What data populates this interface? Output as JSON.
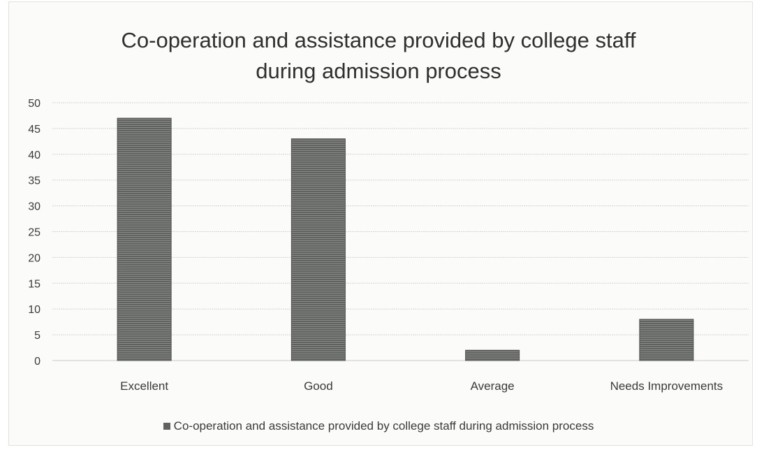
{
  "chart_data": {
    "type": "bar",
    "title": "Co-operation and assistance provided by college staff\nduring admission process",
    "categories": [
      "Excellent",
      "Good",
      "Average",
      "Needs Improvements"
    ],
    "series": [
      {
        "name": "Co-operation and assistance provided by college staff during admission process",
        "values": [
          47,
          43,
          2,
          8
        ]
      }
    ],
    "ylim": [
      0,
      50
    ],
    "yticks": [
      0,
      5,
      10,
      15,
      20,
      25,
      30,
      35,
      40,
      45,
      50
    ],
    "grid": true,
    "legend_position": "bottom",
    "bar_color": "#5f625f",
    "grid_color": "#d4d4d0",
    "text_color": "#3a3a3a"
  }
}
